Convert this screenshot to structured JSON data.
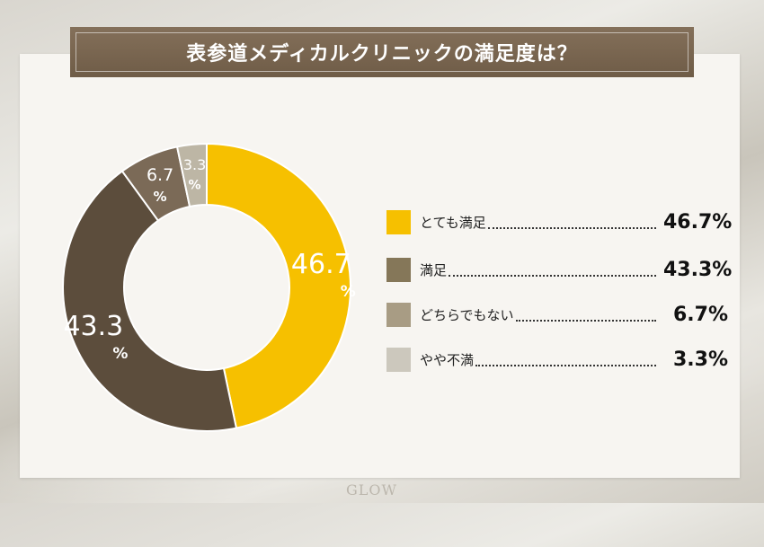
{
  "title": "表参道メディカルクリニックの満足度は？",
  "footer": {
    "logo_text": "GLOW"
  },
  "chart_data": {
    "type": "pie",
    "title": "表参道メディカルクリニックの満足度は？",
    "categories": [
      "とても満足",
      "満足",
      "どちらでもない",
      "やや不満"
    ],
    "values": [
      46.7,
      43.3,
      6.7,
      3.3
    ],
    "value_labels": [
      "46.7%",
      "43.3%",
      "6.7%",
      "3.3%"
    ],
    "slice_labels": [
      "46.7",
      "43.3",
      "6.7",
      "3.3"
    ],
    "unit": "%",
    "colors": [
      "#f6c000",
      "#5c4d3c",
      "#7b6a57",
      "#bdb6a5"
    ],
    "legend_colors": [
      "#f6c000",
      "#857759",
      "#a89c84",
      "#ccc8bd"
    ],
    "legend_position": "right",
    "donut": true
  }
}
